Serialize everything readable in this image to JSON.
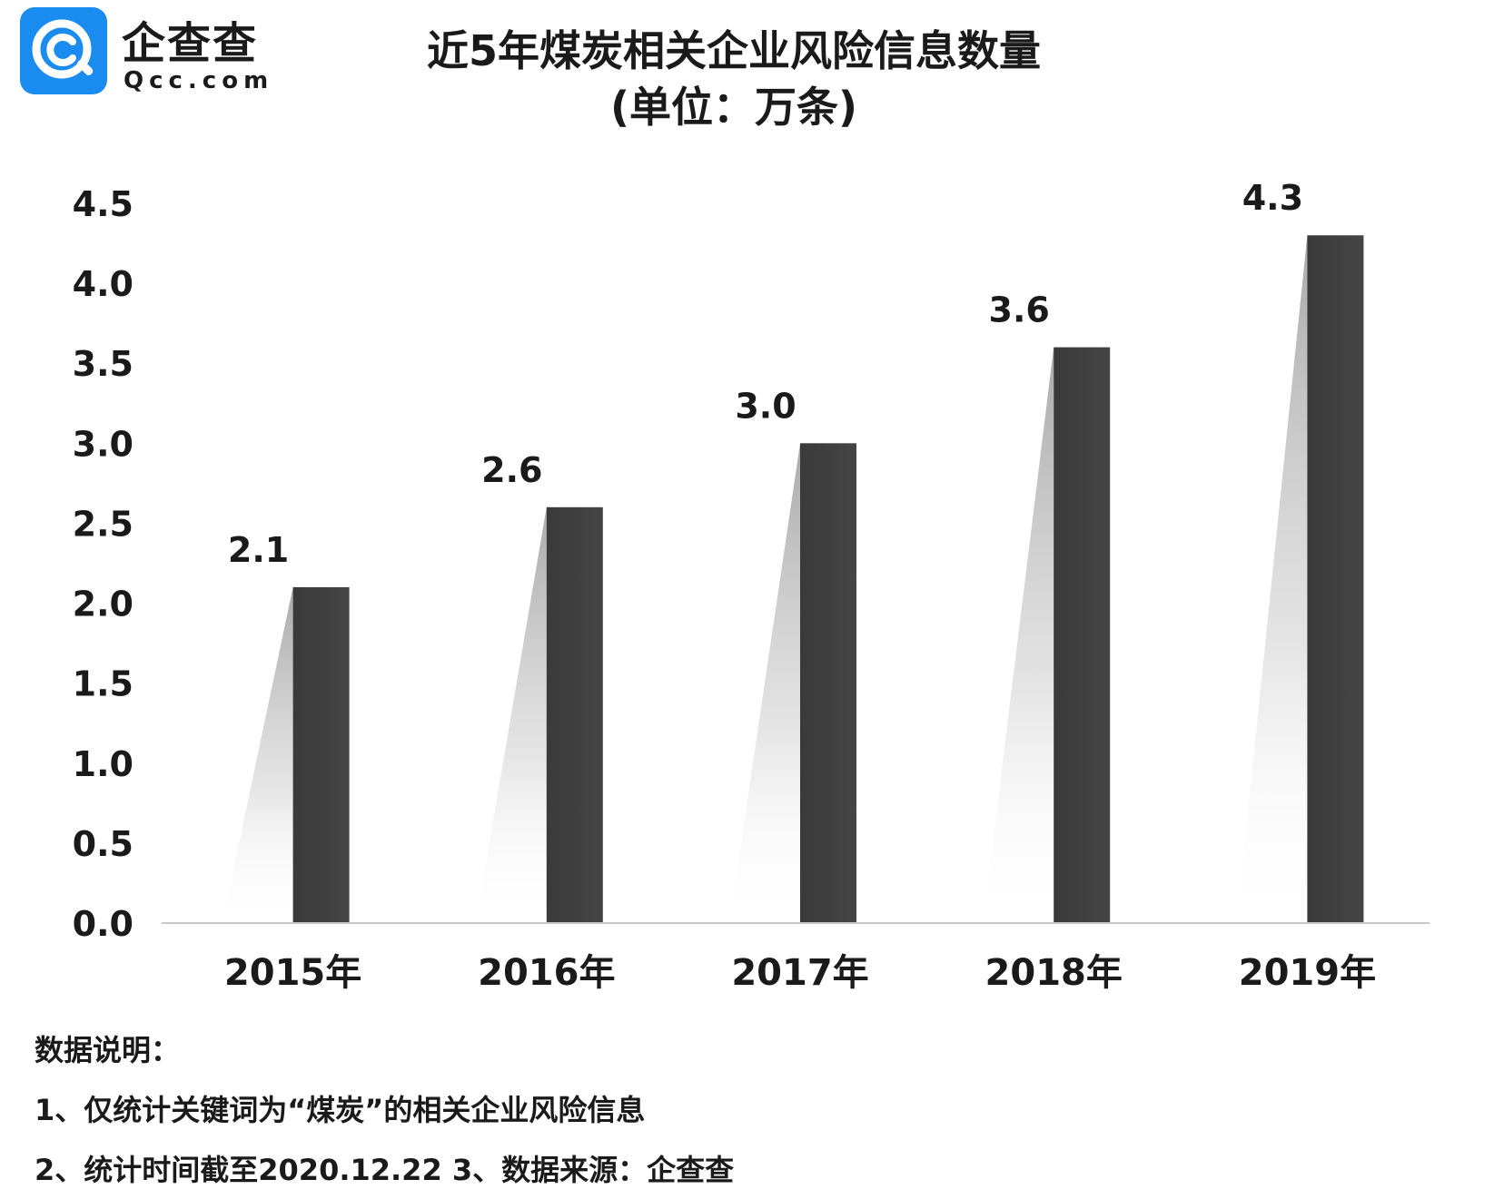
{
  "logo": {
    "name_cn": "企查查",
    "name_en": "Qcc.com",
    "brand_color": "#1a8cf0"
  },
  "header": {
    "title": "近5年煤炭相关企业风险信息数量",
    "subtitle": "(单位：万条)"
  },
  "chart_data": {
    "type": "bar",
    "title": "近5年煤炭相关企业风险信息数量",
    "subtitle": "(单位：万条)",
    "categories": [
      "2015年",
      "2016年",
      "2017年",
      "2018年",
      "2019年"
    ],
    "values": [
      2.1,
      2.6,
      3.0,
      3.6,
      4.3
    ],
    "data_labels": [
      "2.1",
      "2.6",
      "3.0",
      "3.6",
      "4.3"
    ],
    "yticks": [
      "0.0",
      "0.5",
      "1.0",
      "1.5",
      "2.0",
      "2.5",
      "3.0",
      "3.5",
      "4.0",
      "4.5"
    ],
    "ylim": [
      0,
      4.5
    ],
    "grid": false,
    "legend": "none",
    "bar_color": "#3d3d3d"
  },
  "notes": {
    "heading": "数据说明：",
    "line1": "1、仅统计关键词为“煤炭”的相关企业风险信息",
    "line2": "2、统计时间截至2020.12.22   3、数据来源：企查查"
  }
}
